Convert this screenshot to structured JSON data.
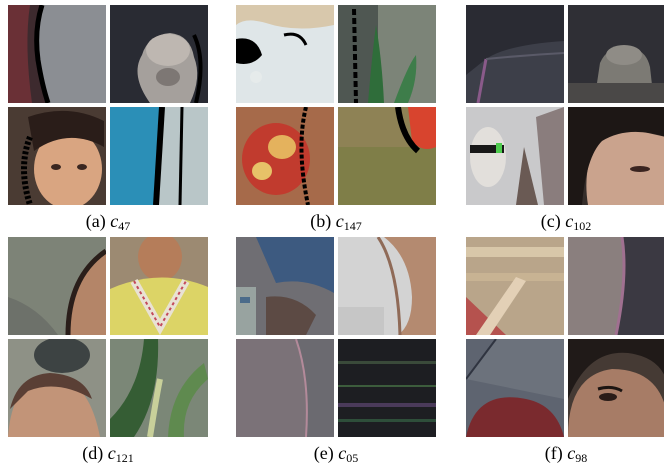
{
  "figure": {
    "panels": [
      {
        "label": "(a)",
        "symbol": "c",
        "index": "47"
      },
      {
        "label": "(b)",
        "symbol": "c",
        "index": "147"
      },
      {
        "label": "(c)",
        "symbol": "c",
        "index": "102"
      },
      {
        "label": "(d)",
        "symbol": "c",
        "index": "121"
      },
      {
        "label": "(e)",
        "symbol": "c",
        "index": "05"
      },
      {
        "label": "(f)",
        "symbol": "c",
        "index": "98"
      }
    ]
  }
}
